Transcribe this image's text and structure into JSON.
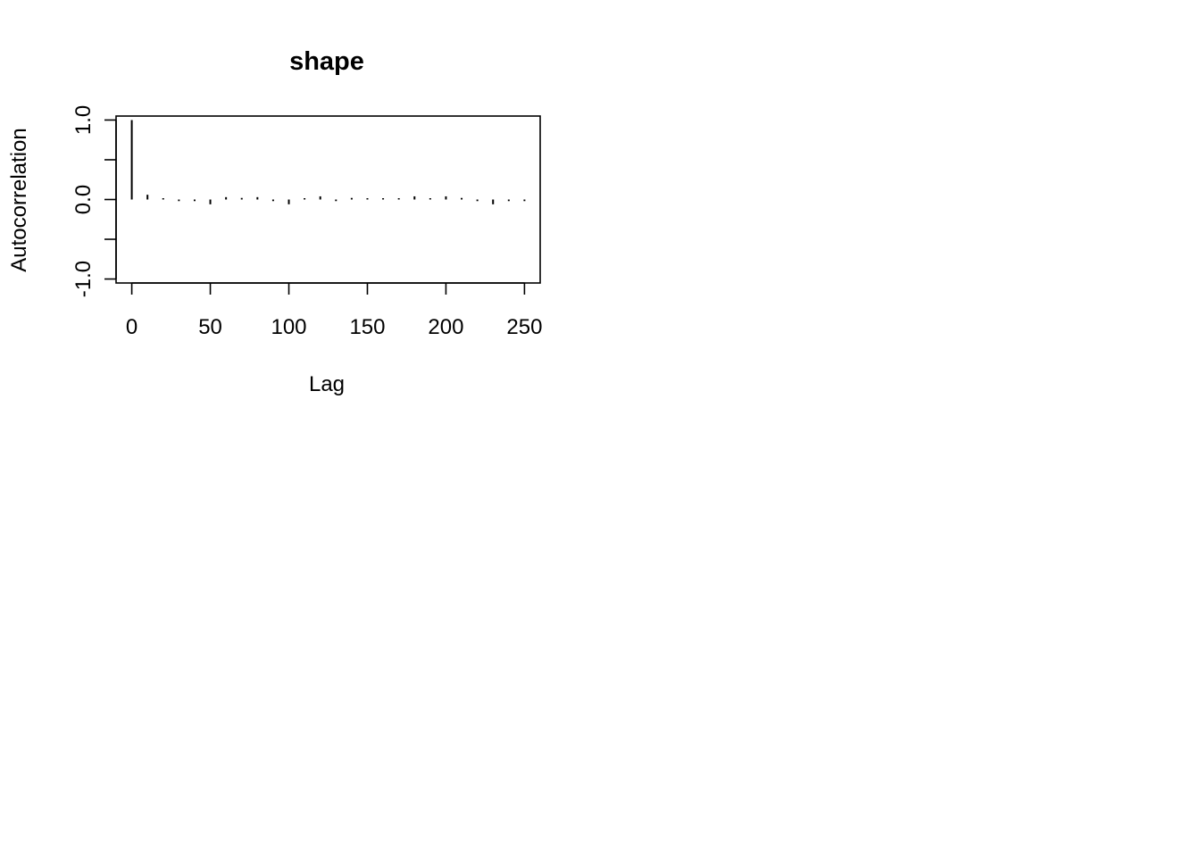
{
  "chart_data": {
    "type": "bar",
    "title": "shape",
    "xlabel": "Lag",
    "ylabel": "Autocorrelation",
    "xlim": [
      -10,
      260
    ],
    "ylim": [
      -1.05,
      1.05
    ],
    "x_ticks": [
      0,
      50,
      100,
      150,
      200,
      250
    ],
    "x_tick_labels": [
      "0",
      "50",
      "100",
      "150",
      "200",
      "250"
    ],
    "y_ticks": [
      -1.0,
      -0.5,
      0.0,
      0.5,
      1.0
    ],
    "y_tick_labels": [
      "-1.0",
      "",
      "0.0",
      "",
      "1.0"
    ],
    "grid": false,
    "legend": "none",
    "line_color": "#000000",
    "lags": [
      0,
      10,
      20,
      30,
      40,
      50,
      60,
      70,
      80,
      90,
      100,
      110,
      120,
      130,
      140,
      150,
      160,
      170,
      180,
      190,
      200,
      210,
      220,
      230,
      240,
      250
    ],
    "values": [
      1.0,
      0.06,
      0.01,
      -0.02,
      -0.02,
      -0.06,
      0.03,
      0.02,
      0.03,
      -0.02,
      -0.06,
      0.0,
      0.04,
      -0.02,
      0.02,
      -0.01,
      -0.01,
      0.01,
      0.04,
      0.0,
      0.04,
      0.02,
      -0.02,
      -0.06,
      -0.02,
      -0.02
    ]
  }
}
